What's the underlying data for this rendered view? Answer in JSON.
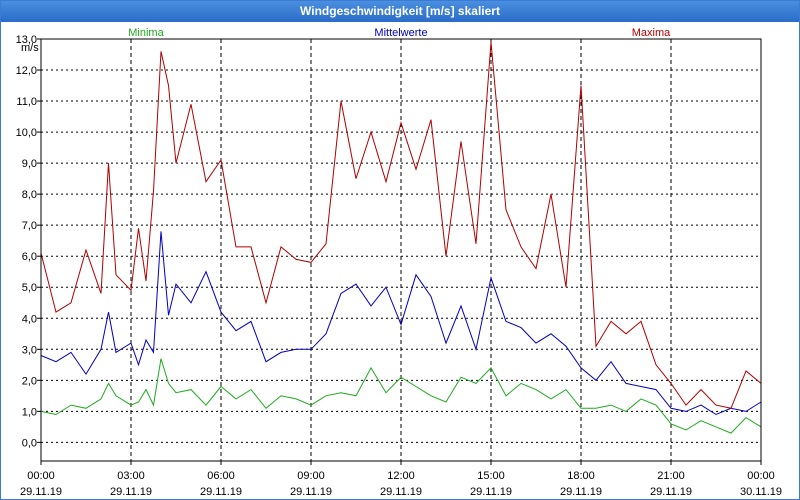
{
  "chart_data": {
    "type": "line",
    "title": "Windgeschwindigkeit [m/s] skaliert",
    "ylabel": "m/s",
    "xlabel": "",
    "ylim": [
      -0.6,
      13.0
    ],
    "xlim": [
      0,
      24
    ],
    "y_ticks": [
      "13,0",
      "12,0",
      "11,0",
      "10,0",
      "9,0",
      "8,0",
      "7,0",
      "6,0",
      "5,0",
      "4,0",
      "3,0",
      "2,0",
      "1,0",
      "0,0"
    ],
    "y_tick_values": [
      13,
      12,
      11,
      10,
      9,
      8,
      7,
      6,
      5,
      4,
      3,
      2,
      1,
      0
    ],
    "x_ticks": [
      {
        "time": "00:00",
        "date": "29.11.19"
      },
      {
        "time": "03:00",
        "date": "29.11.19"
      },
      {
        "time": "06:00",
        "date": "29.11.19"
      },
      {
        "time": "09:00",
        "date": "29.11.19"
      },
      {
        "time": "12:00",
        "date": "29.11.19"
      },
      {
        "time": "15:00",
        "date": "29.11.19"
      },
      {
        "time": "18:00",
        "date": "29.11.19"
      },
      {
        "time": "21:00",
        "date": "29.11.19"
      },
      {
        "time": "00:00",
        "date": "30.11.19"
      }
    ],
    "x_tick_hours": [
      0,
      3,
      6,
      9,
      12,
      15,
      18,
      21,
      24
    ],
    "grid": true,
    "series": [
      {
        "name": "Minima",
        "color": "#1faa1f",
        "x": [
          0,
          0.5,
          1,
          1.5,
          2,
          2.25,
          2.5,
          3,
          3.25,
          3.5,
          3.75,
          4,
          4.25,
          4.5,
          5,
          5.5,
          6,
          6.5,
          7,
          7.5,
          8,
          8.5,
          9,
          9.5,
          10,
          10.5,
          11,
          11.5,
          12,
          12.5,
          13,
          13.5,
          14,
          14.5,
          15,
          15.5,
          16,
          16.5,
          17,
          17.5,
          18,
          18.5,
          19,
          19.5,
          20,
          20.5,
          21,
          21.5,
          22,
          22.5,
          23,
          23.5,
          24
        ],
        "values": [
          1.0,
          0.9,
          1.2,
          1.1,
          1.4,
          1.9,
          1.5,
          1.2,
          1.3,
          1.7,
          1.2,
          2.7,
          1.9,
          1.6,
          1.7,
          1.2,
          1.8,
          1.4,
          1.7,
          1.1,
          1.5,
          1.4,
          1.2,
          1.5,
          1.6,
          1.5,
          2.4,
          1.6,
          2.1,
          1.8,
          1.5,
          1.3,
          2.1,
          1.9,
          2.4,
          1.5,
          1.9,
          1.7,
          1.4,
          1.7,
          1.1,
          1.1,
          1.2,
          1.0,
          1.4,
          1.2,
          0.6,
          0.4,
          0.7,
          0.5,
          0.3,
          0.8,
          0.5
        ]
      },
      {
        "name": "Mittelwerte",
        "color": "#0000c0",
        "x": [
          0,
          0.5,
          1,
          1.5,
          2,
          2.25,
          2.5,
          3,
          3.25,
          3.5,
          3.75,
          4,
          4.25,
          4.5,
          5,
          5.5,
          6,
          6.5,
          7,
          7.5,
          8,
          8.5,
          9,
          9.5,
          10,
          10.5,
          11,
          11.5,
          12,
          12.5,
          13,
          13.5,
          14,
          14.5,
          15,
          15.5,
          16,
          16.5,
          17,
          17.5,
          18,
          18.5,
          19,
          19.5,
          20,
          20.5,
          21,
          21.5,
          22,
          22.5,
          23,
          23.5,
          24
        ],
        "values": [
          2.8,
          2.6,
          2.9,
          2.2,
          3.0,
          4.2,
          2.9,
          3.2,
          2.5,
          3.3,
          2.9,
          6.8,
          4.1,
          5.1,
          4.5,
          5.5,
          4.2,
          3.6,
          3.9,
          2.6,
          2.9,
          3.0,
          3.0,
          3.5,
          4.8,
          5.1,
          4.4,
          5.0,
          3.8,
          5.4,
          4.7,
          3.2,
          4.4,
          3.0,
          5.3,
          3.9,
          3.7,
          3.2,
          3.5,
          3.1,
          2.4,
          2.0,
          2.6,
          1.9,
          1.8,
          1.7,
          1.1,
          1.0,
          1.2,
          0.9,
          1.1,
          1.0,
          1.3
        ]
      },
      {
        "name": "Maxima",
        "color": "#b00000",
        "x": [
          0,
          0.5,
          1,
          1.5,
          2,
          2.25,
          2.5,
          3,
          3.25,
          3.5,
          3.75,
          4,
          4.25,
          4.5,
          5,
          5.5,
          6,
          6.5,
          7,
          7.5,
          8,
          8.5,
          9,
          9.5,
          10,
          10.5,
          11,
          11.5,
          12,
          12.5,
          13,
          13.5,
          14,
          14.5,
          15,
          15.5,
          16,
          16.5,
          17,
          17.5,
          18,
          18.5,
          19,
          19.5,
          20,
          20.5,
          21,
          21.5,
          22,
          22.5,
          23,
          23.5,
          24
        ],
        "values": [
          6.1,
          4.2,
          4.5,
          6.2,
          4.8,
          9.0,
          5.4,
          4.9,
          6.9,
          5.2,
          8.1,
          12.6,
          11.5,
          9.0,
          10.9,
          8.4,
          9.1,
          6.3,
          6.3,
          4.5,
          6.3,
          5.9,
          5.8,
          6.4,
          11.0,
          8.5,
          10.0,
          8.4,
          10.3,
          8.8,
          10.4,
          6.0,
          9.7,
          6.4,
          12.9,
          7.5,
          6.3,
          5.6,
          8.0,
          5.0,
          11.5,
          3.1,
          3.9,
          3.5,
          3.9,
          2.5,
          1.9,
          1.2,
          1.7,
          1.2,
          1.1,
          2.3,
          1.9
        ]
      }
    ]
  }
}
